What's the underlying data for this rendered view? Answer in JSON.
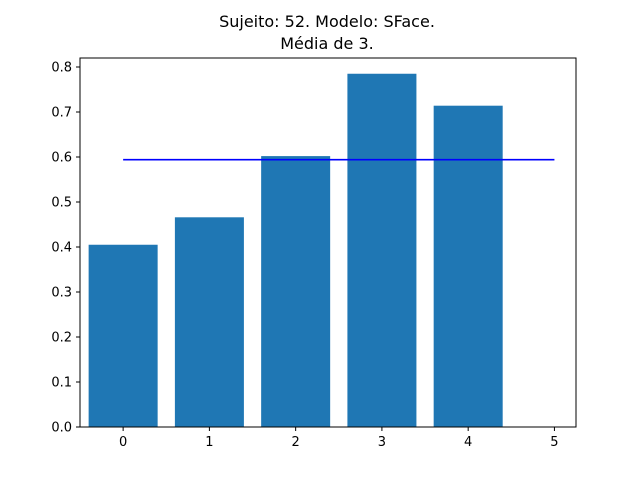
{
  "chart_data": {
    "type": "bar",
    "title_line1": "Sujeito: 52. Modelo: SFace.",
    "title_line2": "Média de 3.",
    "categories": [
      0,
      1,
      2,
      3,
      4
    ],
    "values": [
      0.405,
      0.466,
      0.602,
      0.785,
      0.714
    ],
    "reference_line": {
      "y": 0.594,
      "x_start": 0,
      "x_end": 5,
      "color": "#0000ff"
    },
    "bar_color": "#1f77b4",
    "xlim": [
      -0.5,
      5.25
    ],
    "ylim": [
      0,
      0.82
    ],
    "xticks": [
      0,
      1,
      2,
      3,
      4,
      5
    ],
    "yticks": [
      0.0,
      0.1,
      0.2,
      0.3,
      0.4,
      0.5,
      0.6,
      0.7,
      0.8
    ],
    "ytick_labels": [
      "0.0",
      "0.1",
      "0.2",
      "0.3",
      "0.4",
      "0.5",
      "0.6",
      "0.7",
      "0.8"
    ],
    "xlabel": "",
    "ylabel": "",
    "grid": false,
    "legend": "none"
  }
}
